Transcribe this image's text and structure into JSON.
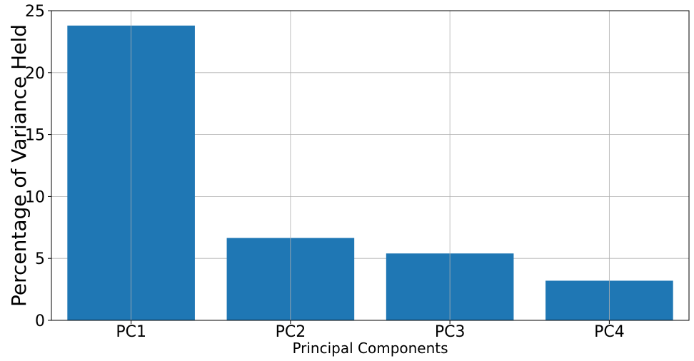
{
  "chart_data": {
    "type": "bar",
    "title": "",
    "xlabel": "Principal Components",
    "ylabel": "Percentage of Variance Held",
    "categories": [
      "PC1",
      "PC2",
      "PC3",
      "PC4"
    ],
    "values": [
      23.8,
      6.65,
      5.4,
      3.2
    ],
    "ylim": [
      0,
      25
    ],
    "yticks": [
      0,
      5,
      10,
      15,
      20,
      25
    ],
    "grid": true,
    "bar_color": "#1f77b4",
    "grid_color": "#b0b0b0"
  }
}
